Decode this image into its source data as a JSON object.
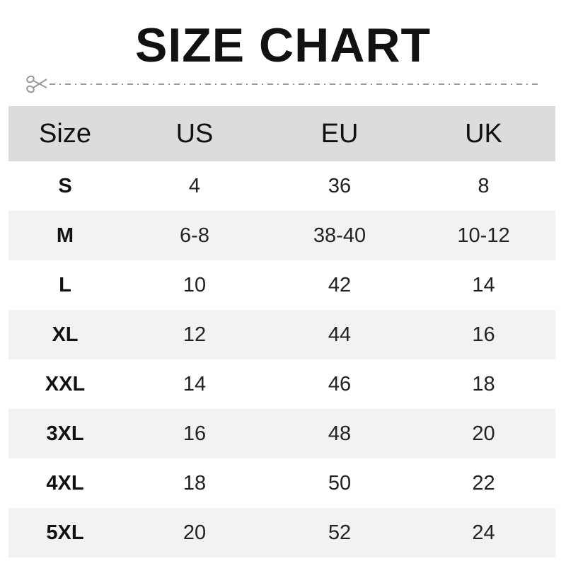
{
  "title": "SIZE CHART",
  "cut_icon": "scissors-icon",
  "colors": {
    "header_bg": "#dcdcdc",
    "alt_row_bg": "#f2f2f2",
    "cutline": "#999999"
  },
  "table": {
    "headers": [
      "Size",
      "US",
      "EU",
      "UK"
    ],
    "rows": [
      [
        "S",
        "4",
        "36",
        "8"
      ],
      [
        "M",
        "6-8",
        "38-40",
        "10-12"
      ],
      [
        "L",
        "10",
        "42",
        "14"
      ],
      [
        "XL",
        "12",
        "44",
        "16"
      ],
      [
        "XXL",
        "14",
        "46",
        "18"
      ],
      [
        "3XL",
        "16",
        "48",
        "20"
      ],
      [
        "4XL",
        "18",
        "50",
        "22"
      ],
      [
        "5XL",
        "20",
        "52",
        "24"
      ]
    ]
  }
}
